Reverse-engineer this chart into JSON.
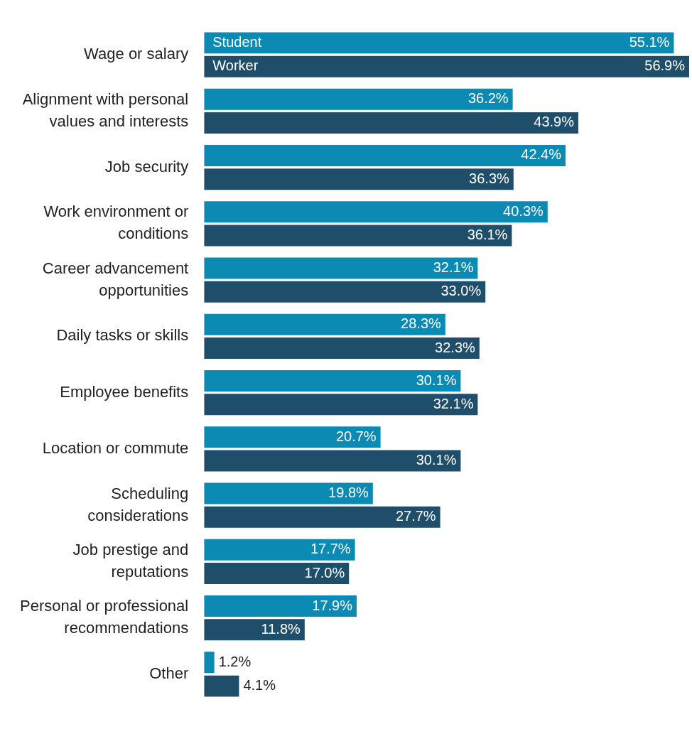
{
  "chart_data": {
    "type": "bar",
    "orientation": "horizontal",
    "legend": false,
    "grid": false,
    "categories": [
      "Wage or salary",
      "Alignment with personal values and interests",
      "Job security",
      "Work environment or conditions",
      "Career advancement opportunities",
      "Daily tasks or skills",
      "Employee benefits",
      "Location or commute",
      "Scheduling considerations",
      "Job prestige and reputations",
      "Personal or professional recommendations",
      "Other"
    ],
    "series": [
      {
        "name": "Student",
        "color": "#0b8ab4",
        "values": [
          55.1,
          36.2,
          42.4,
          40.3,
          32.1,
          28.3,
          30.1,
          20.7,
          19.8,
          17.7,
          17.9,
          1.2
        ],
        "value_labels": [
          "55.1%",
          "36.2%",
          "42.4%",
          "40.3%",
          "32.1%",
          "28.3%",
          "30.1%",
          "20.7%",
          "19.8%",
          "17.7%",
          "17.9%",
          "1.2%"
        ]
      },
      {
        "name": "Worker",
        "color": "#1f4e6b",
        "values": [
          56.9,
          43.9,
          36.3,
          36.1,
          33.0,
          32.3,
          32.1,
          30.1,
          27.7,
          17.0,
          11.8,
          4.1
        ],
        "value_labels": [
          "56.9%",
          "43.9%",
          "36.3%",
          "36.1%",
          "33.0%",
          "32.3%",
          "32.1%",
          "30.1%",
          "27.7%",
          "17.0%",
          "11.8%",
          "4.1%"
        ]
      }
    ]
  }
}
